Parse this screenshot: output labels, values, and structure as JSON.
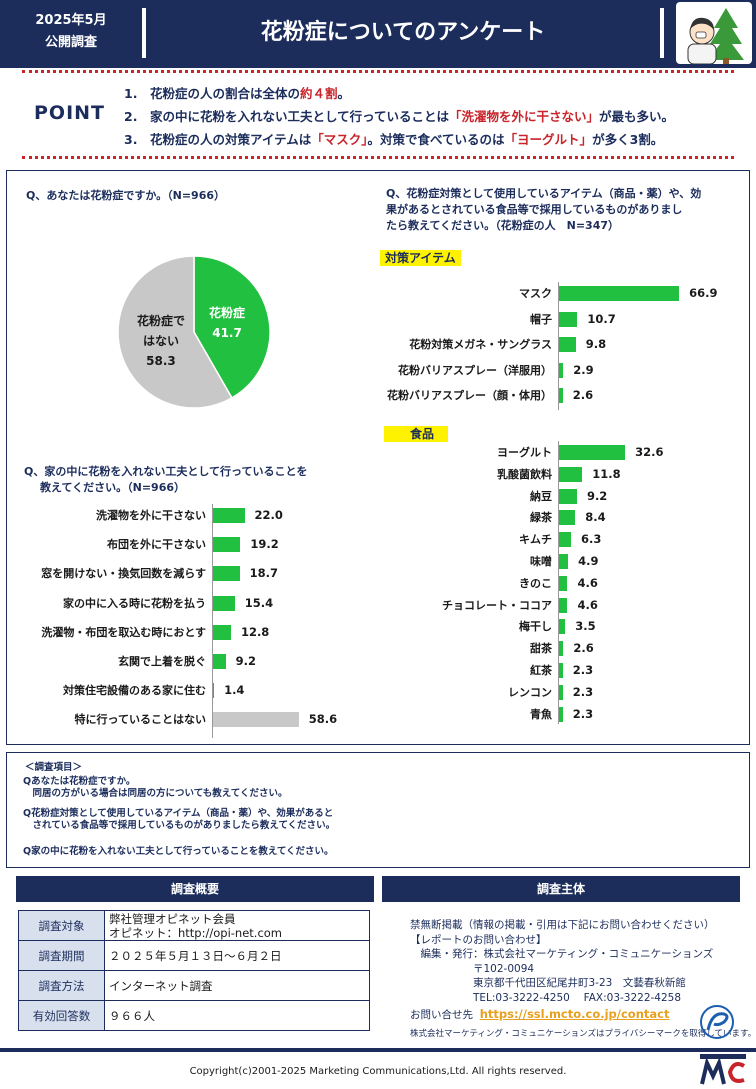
{
  "header": {
    "date": "2025年5月",
    "subtitle": "公開調査",
    "title": "花粉症についてのアンケート",
    "illustration_icon": "person-with-tree-sneezing-icon"
  },
  "point": {
    "label": "POINT",
    "items": [
      {
        "num": "1.",
        "parts": [
          {
            "t": "花粉症の人の割合は全体の",
            "red": false
          },
          {
            "t": "約４割",
            "red": true
          },
          {
            "t": "。",
            "red": false
          }
        ]
      },
      {
        "num": "2.",
        "parts": [
          {
            "t": "家の中に花粉を入れない工夫として行っていることは",
            "red": false
          },
          {
            "t": "「洗濯物を外に干さない」",
            "red": true
          },
          {
            "t": "が最も多い。",
            "red": false
          }
        ]
      },
      {
        "num": "3.",
        "parts": [
          {
            "t": "花粉症の人の対策アイテムは",
            "red": false
          },
          {
            "t": "「マスク」",
            "red": true
          },
          {
            "t": "。対策で食べているのは",
            "red": false
          },
          {
            "t": "「ヨーグルト」",
            "red": true
          },
          {
            "t": "が多く3割。",
            "red": false
          }
        ]
      }
    ]
  },
  "q1": {
    "question": "Q、あなたは花粉症ですか。（N=966）",
    "chart_data": {
      "type": "pie",
      "slices": [
        {
          "label": "花粉症",
          "value": 41.7,
          "color": "#22c040",
          "value_text": "41.7"
        },
        {
          "label_lines": [
            "花粉症で",
            "はない"
          ],
          "value": 58.3,
          "color": "#c8c8c8",
          "value_text": "58.3"
        }
      ]
    }
  },
  "q2": {
    "question_lines": [
      "Q、花粉症対策として使用しているアイテム（商品・薬）や、効",
      "果があるとされている食品等で採用しているものがありまし",
      "たら教えてください。（花粉症の人　N=347）"
    ],
    "items_heading": "対策アイテム",
    "food_heading": "食品",
    "items_chart": {
      "type": "bar",
      "categories": [
        "マスク",
        "帽子",
        "花粉対策メガネ・サングラス",
        "花粉バリアスプレー（洋服用）",
        "花粉バリアスプレー（顔・体用）"
      ],
      "values": [
        66.9,
        10.7,
        9.8,
        2.9,
        2.6
      ],
      "value_labels": [
        "66.9",
        "10.7",
        "9.8",
        "2.9",
        "2.6"
      ]
    },
    "food_chart": {
      "type": "bar",
      "categories": [
        "ヨーグルト",
        "乳酸菌飲料",
        "納豆",
        "緑茶",
        "キムチ",
        "味噌",
        "きのこ",
        "チョコレート・ココア",
        "梅干し",
        "甜茶",
        "紅茶",
        "レンコン",
        "青魚"
      ],
      "values": [
        32.6,
        11.8,
        9.2,
        8.4,
        6.3,
        4.9,
        4.6,
        4.6,
        3.5,
        2.6,
        2.3,
        2.3,
        2.3
      ],
      "value_labels": [
        "32.6",
        "11.8",
        "9.2",
        "8.4",
        "6.3",
        "4.9",
        "4.6",
        "4.6",
        "3.5",
        "2.6",
        "2.3",
        "2.3",
        "2.3"
      ]
    }
  },
  "q3": {
    "question_lines": [
      "Q、家の中に花粉を入れない工夫として行っていることを",
      "教えてください。（N=966）"
    ],
    "chart_data": {
      "type": "bar",
      "categories": [
        "洗濯物を外に干さない",
        "布団を外に干さない",
        "窓を開けない・換気回数を減らす",
        "家の中に入る時に花粉を払う",
        "洗濯物・布団を取込む時におとす",
        "玄関で上着を脱ぐ",
        "対策住宅設備のある家に住む",
        "特に行っていることはない"
      ],
      "values": [
        22.0,
        19.2,
        18.7,
        15.4,
        12.8,
        9.2,
        1.4,
        58.6
      ],
      "value_labels": [
        "22.0",
        "19.2",
        "18.7",
        "15.4",
        "12.8",
        "9.2",
        "1.4",
        "58.6"
      ],
      "highlight_gray_index": 7
    }
  },
  "notes": {
    "lines": [
      "＜調査項目＞",
      "Qあなたは花粉症ですか。",
      "　同居の方がいる場合は同居の方についても教えてください。",
      "Q花粉症対策として使用しているアイテム（商品・薬）や、効果があると",
      "　されている食品等で採用しているものがありましたら教えてください。",
      "Q家の中に花粉を入れない工夫として行っていることを教えてください。"
    ]
  },
  "overview": {
    "heading": "調査概要",
    "rows": [
      {
        "key": "調査対象",
        "value_lines": [
          "弊社管理オピネット会員",
          "オピネット：http://opi-net.com"
        ]
      },
      {
        "key": "調査期間",
        "value_lines": [
          "２０２５年５月１３日～６月２日"
        ]
      },
      {
        "key": "調査方法",
        "value_lines": [
          "インターネット調査"
        ]
      },
      {
        "key": "有効回答数",
        "value_lines": [
          "９６６人"
        ]
      }
    ]
  },
  "organizer": {
    "heading": "調査主体",
    "lines": [
      "禁無断掲載（情報の掲載・引用は下記にお問い合わせください）",
      "【レポートのお問い合わせ】",
      "　編集・発行：株式会社マーケティング・コミュニケーションズ",
      "　　　　　　〒102-0094",
      "　　　　　　東京都千代田区紀尾井町3-23　文藝春秋新館",
      "　　　　　　TEL:03-3222-4250　 FAX:03-3222-4258"
    ],
    "contact_label": "お問い合せ先",
    "contact_link": "https://ssl.mcto.co.jp/contact",
    "privacy_note": "株式会社マーケティング・コミュニケーションズはプライバシーマークを取得しています。",
    "privacy_icon": "privacy-mark-logo-icon"
  },
  "footer": {
    "copyright": "Copyright(c)2001-2025 Marketing Communications,Ltd. All rights reserved.",
    "logo_icon": "mc-logo-icon"
  }
}
